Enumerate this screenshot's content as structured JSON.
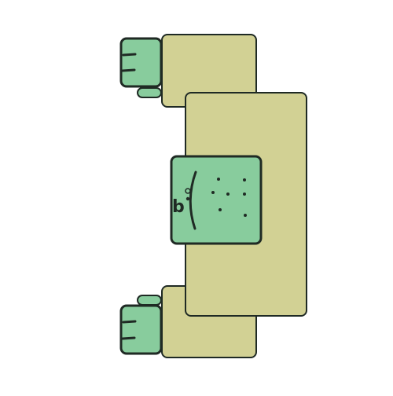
{
  "scene": {
    "background_color": "#ffffff",
    "outline_color": "#1f2a24",
    "body_color": "#d2d194",
    "limb_color": "#88cc9d",
    "head_label": "b"
  }
}
